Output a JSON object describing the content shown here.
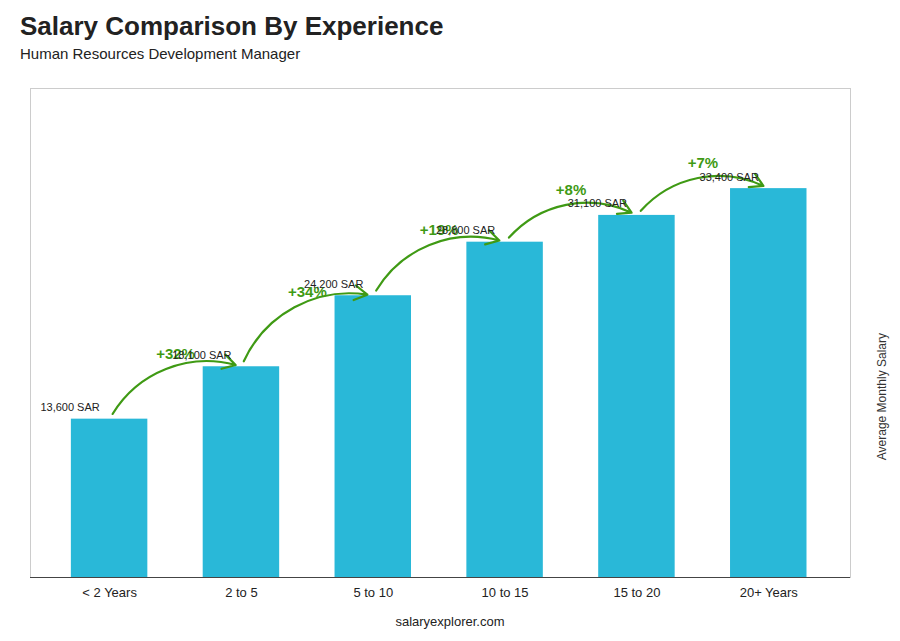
{
  "chart_data": {
    "type": "bar",
    "title": "Salary Comparison By Experience",
    "subtitle": "Human Resources Development Manager",
    "ylabel": "Average Monthly Salary",
    "categories": [
      "< 2 Years",
      "2 to 5",
      "5 to 10",
      "10 to 15",
      "15 to 20",
      "20+ Years"
    ],
    "values": [
      13600,
      18100,
      24200,
      28800,
      31100,
      33400
    ],
    "value_labels": [
      "13,600 SAR",
      "18,100 SAR",
      "24,200 SAR",
      "28,800 SAR",
      "31,100 SAR",
      "33,400 SAR"
    ],
    "data_labels": true,
    "color": "#29b8d8",
    "ylim": [
      0,
      42000
    ],
    "tick_labels": "x",
    "annotations": [
      "+32%",
      "+34%",
      "+19%",
      "+8%",
      "+7%"
    ],
    "caption": "salaryexplorer.com"
  }
}
